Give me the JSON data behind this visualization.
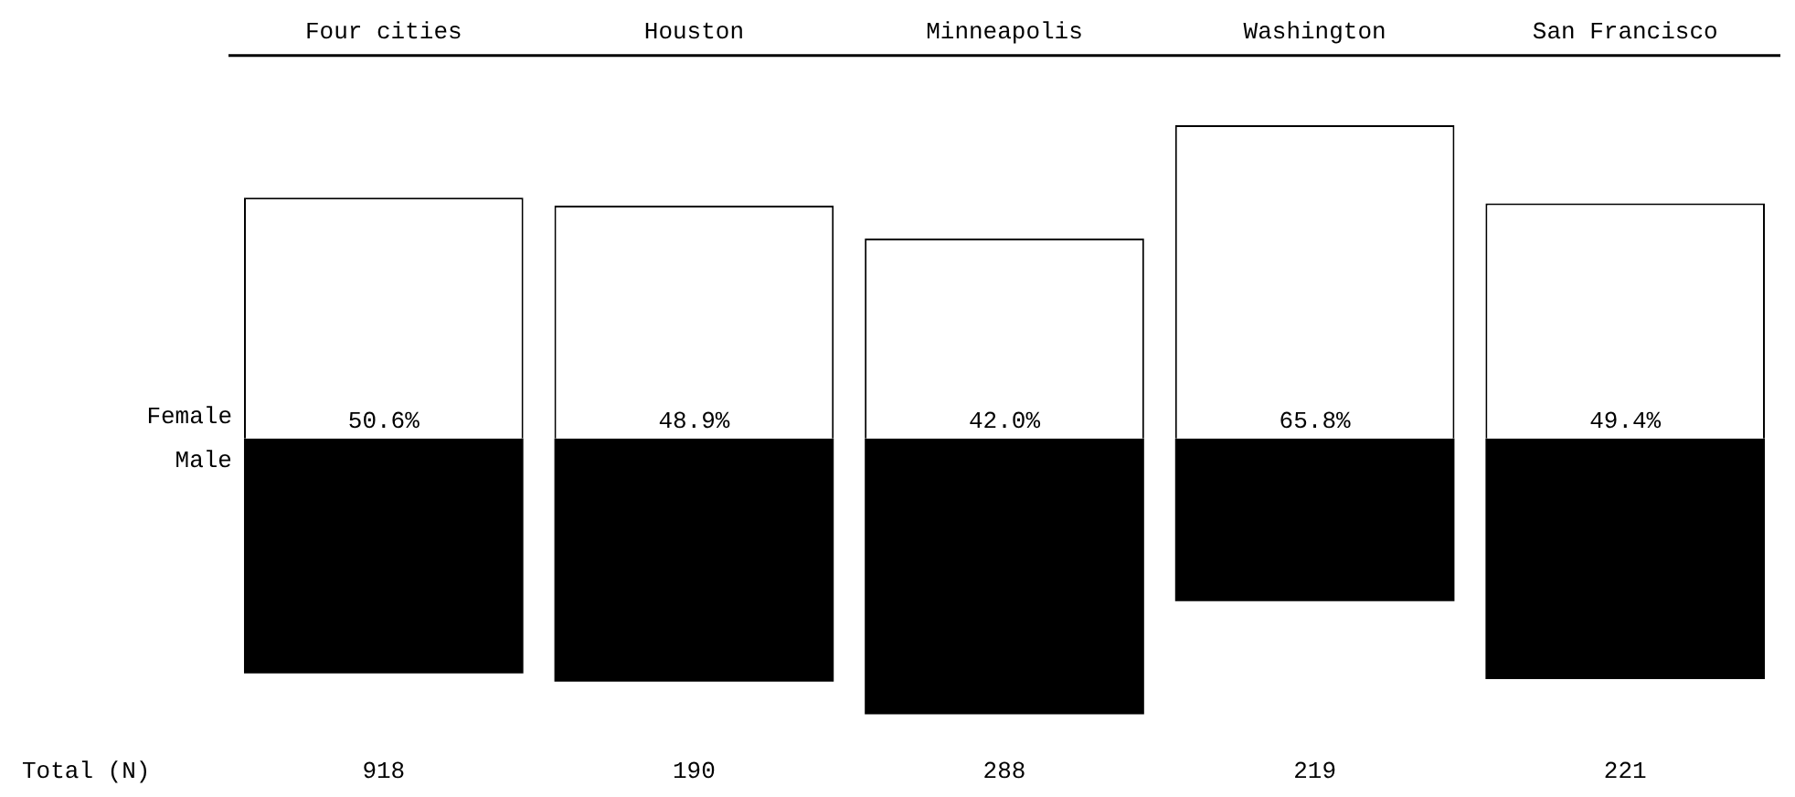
{
  "chart_data": {
    "type": "bar",
    "categories": [
      "Four cities",
      "Houston",
      "Minneapolis",
      "Washington",
      "San Francisco"
    ],
    "series": [
      {
        "name": "Female",
        "color": "#ffffff",
        "values": [
          50.6,
          48.9,
          42.0,
          65.8,
          49.4
        ],
        "value_labels": [
          "50.6%",
          "48.9%",
          "42.0%",
          "65.8%",
          "49.4%"
        ]
      },
      {
        "name": "Male",
        "color": "#000000",
        "values": [
          -49.4,
          -51.1,
          -58.0,
          -34.2,
          -50.6
        ]
      }
    ],
    "stacked": true,
    "tick_labels": "x",
    "grid": false,
    "legend": false,
    "annotations": [
      "Total (N)",
      "918",
      "190",
      "288",
      "219",
      "221"
    ]
  }
}
